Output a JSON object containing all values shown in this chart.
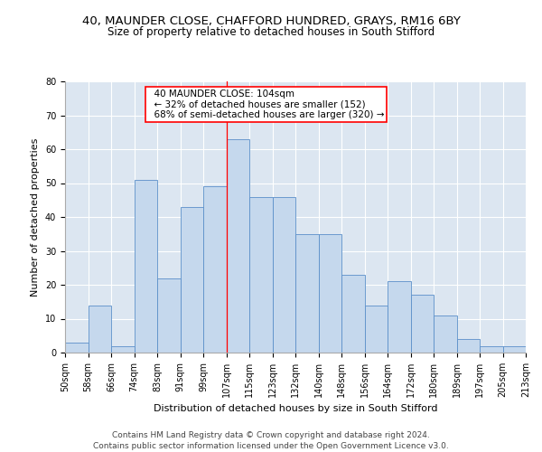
{
  "title_line1": "40, MAUNDER CLOSE, CHAFFORD HUNDRED, GRAYS, RM16 6BY",
  "title_line2": "Size of property relative to detached houses in South Stifford",
  "xlabel": "Distribution of detached houses by size in South Stifford",
  "ylabel": "Number of detached properties",
  "bar_values": [
    3,
    14,
    2,
    51,
    22,
    43,
    49,
    63,
    46,
    46,
    35,
    35,
    23,
    14,
    21,
    17,
    11,
    4,
    2,
    2
  ],
  "bin_labels": [
    "50sqm",
    "58sqm",
    "66sqm",
    "74sqm",
    "83sqm",
    "91sqm",
    "99sqm",
    "107sqm",
    "115sqm",
    "123sqm",
    "132sqm",
    "140sqm",
    "148sqm",
    "156sqm",
    "164sqm",
    "172sqm",
    "180sqm",
    "189sqm",
    "197sqm",
    "205sqm",
    "213sqm"
  ],
  "bar_color": "#c5d8ed",
  "bar_edge_color": "#5b8fc9",
  "background_color": "#dce6f1",
  "grid_color": "#ffffff",
  "annotation_text": "  40 MAUNDER CLOSE: 104sqm  \n  ← 32% of detached houses are smaller (152)  \n  68% of semi-detached houses are larger (320) →  ",
  "annotation_box_color": "#ffffff",
  "annotation_box_edge": "#ff0000",
  "red_line_x": 6.5,
  "ylim": [
    0,
    80
  ],
  "yticks": [
    0,
    10,
    20,
    30,
    40,
    50,
    60,
    70,
    80
  ],
  "footer_text": "Contains HM Land Registry data © Crown copyright and database right 2024.\nContains public sector information licensed under the Open Government Licence v3.0.",
  "title1_fontsize": 9.5,
  "title2_fontsize": 8.5,
  "axis_label_fontsize": 8,
  "tick_fontsize": 7,
  "annotation_fontsize": 7.5,
  "footer_fontsize": 6.5
}
